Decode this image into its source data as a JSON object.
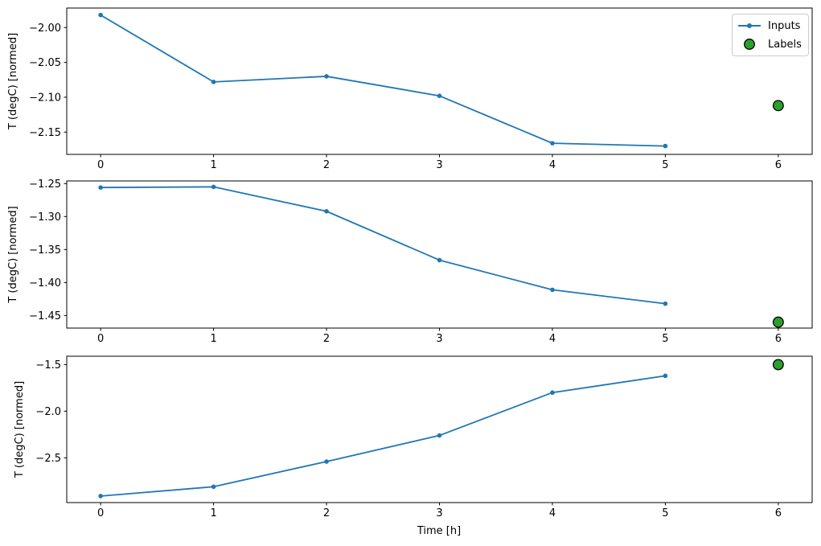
{
  "figure": {
    "xlabel": "Time [h]",
    "legend": {
      "inputs_label": "Inputs",
      "labels_label": "Labels"
    },
    "colors": {
      "inputs": "#1f77b4",
      "labels": "#2ca02c",
      "labels_edge": "#000000",
      "spine": "#000000",
      "text": "#000000",
      "legend_border": "#cccccc"
    }
  },
  "chart_data": [
    {
      "type": "line",
      "ylabel": "T (degC) [normed]",
      "x": [
        0,
        1,
        2,
        3,
        4,
        5
      ],
      "series": [
        {
          "name": "Inputs",
          "values": [
            -1.982,
            -2.078,
            -2.07,
            -2.098,
            -2.166,
            -2.17
          ]
        }
      ],
      "label_point": {
        "name": "Labels",
        "x": 6,
        "y": -2.112
      },
      "xlim": [
        -0.3,
        6.3
      ],
      "ylim": [
        -2.182,
        -1.972
      ],
      "xticks": [
        0,
        1,
        2,
        3,
        4,
        5,
        6
      ],
      "xtick_labels": [
        "0",
        "1",
        "2",
        "3",
        "4",
        "5",
        "6"
      ],
      "yticks": [
        -2.0,
        -2.05,
        -2.1,
        -2.15
      ],
      "ytick_labels": [
        "−2.00",
        "−2.05",
        "−2.10",
        "−2.15"
      ],
      "grid": false,
      "legend_position": "upper right"
    },
    {
      "type": "line",
      "ylabel": "T (degC) [normed]",
      "x": [
        0,
        1,
        2,
        3,
        4,
        5
      ],
      "series": [
        {
          "name": "Inputs",
          "values": [
            -1.256,
            -1.255,
            -1.292,
            -1.366,
            -1.411,
            -1.432
          ]
        }
      ],
      "label_point": {
        "name": "Labels",
        "x": 6,
        "y": -1.46
      },
      "xlim": [
        -0.3,
        6.3
      ],
      "ylim": [
        -1.469,
        -1.246
      ],
      "xticks": [
        0,
        1,
        2,
        3,
        4,
        5,
        6
      ],
      "xtick_labels": [
        "0",
        "1",
        "2",
        "3",
        "4",
        "5",
        "6"
      ],
      "yticks": [
        -1.25,
        -1.3,
        -1.35,
        -1.4,
        -1.45
      ],
      "ytick_labels": [
        "−1.25",
        "−1.30",
        "−1.35",
        "−1.40",
        "−1.45"
      ],
      "grid": false,
      "legend_position": "none"
    },
    {
      "type": "line",
      "ylabel": "T (degC) [normed]",
      "x": [
        0,
        1,
        2,
        3,
        4,
        5
      ],
      "series": [
        {
          "name": "Inputs",
          "values": [
            -2.91,
            -2.81,
            -2.54,
            -2.26,
            -1.8,
            -1.62
          ]
        }
      ],
      "label_point": {
        "name": "Labels",
        "x": 6,
        "y": -1.5
      },
      "xlim": [
        -0.3,
        6.3
      ],
      "ylim": [
        -2.98,
        -1.41
      ],
      "xticks": [
        0,
        1,
        2,
        3,
        4,
        5,
        6
      ],
      "xtick_labels": [
        "0",
        "1",
        "2",
        "3",
        "4",
        "5",
        "6"
      ],
      "yticks": [
        -1.5,
        -2.0,
        -2.5
      ],
      "ytick_labels": [
        "−1.5",
        "−2.0",
        "−2.5"
      ],
      "grid": false,
      "legend_position": "none"
    }
  ]
}
